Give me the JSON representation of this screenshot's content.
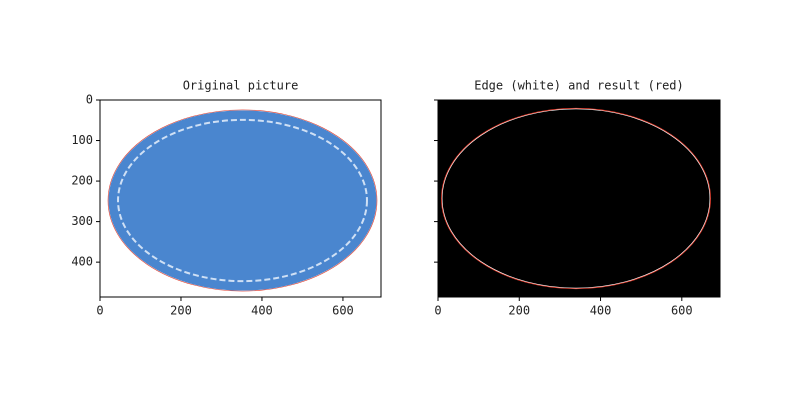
{
  "chart_data": [
    {
      "type": "image",
      "title": "Original picture",
      "xlim": [
        0,
        694
      ],
      "ylim": [
        486,
        0
      ],
      "xticks": [
        0,
        200,
        400,
        600
      ],
      "yticks": [
        0,
        100,
        200,
        300,
        400
      ],
      "show_ytick_labels": true,
      "background": "#ffffff",
      "color": "#4a86cf"
    },
    {
      "type": "image",
      "title": "Edge (white) and result (red)",
      "xlim": [
        0,
        694
      ],
      "ylim": [
        486,
        0
      ],
      "xticks": [
        0,
        200,
        400,
        600
      ],
      "yticks": [
        0,
        100,
        200,
        300,
        400
      ],
      "show_ytick_labels": false,
      "background": "#000000",
      "color": "#e03a2a"
    }
  ]
}
